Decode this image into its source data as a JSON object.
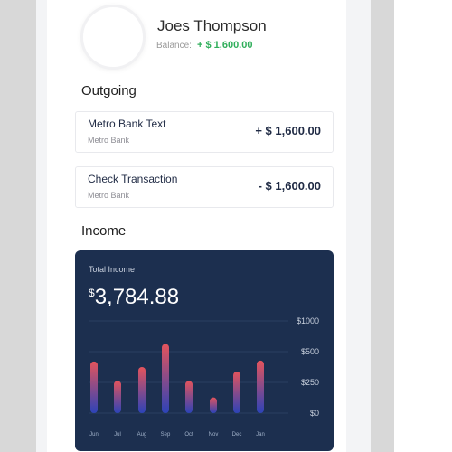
{
  "profile": {
    "name": "Joes Thompson",
    "balance_label": "Balance:",
    "balance_value": "+ $ 1,600.00"
  },
  "outgoing": {
    "title": "Outgoing",
    "items": [
      {
        "title": "Metro Bank Text",
        "subtitle": "Metro Bank",
        "amount": "+ $ 1,600.00"
      },
      {
        "title": "Check Transaction",
        "subtitle": "Metro Bank",
        "amount": "- $ 1,600.00"
      }
    ]
  },
  "income": {
    "title": "Income",
    "card_label": "Total Income",
    "currency": "$",
    "total": "3,784.88"
  },
  "colors": {
    "card_bg": "#1c2f4f",
    "bar_top": "#e4545c",
    "bar_bottom": "#2c43b8",
    "positive": "#2fae5a"
  },
  "chart_data": {
    "type": "bar",
    "categories": [
      "Jun",
      "Jul",
      "Aug",
      "Sep",
      "Oct",
      "Nov",
      "Dec",
      "Jan"
    ],
    "values": [
      560,
      350,
      500,
      750,
      350,
      170,
      450,
      570
    ],
    "y_ticks": [
      "$1000",
      "$500",
      "$250",
      "$0"
    ],
    "grid": true
  }
}
